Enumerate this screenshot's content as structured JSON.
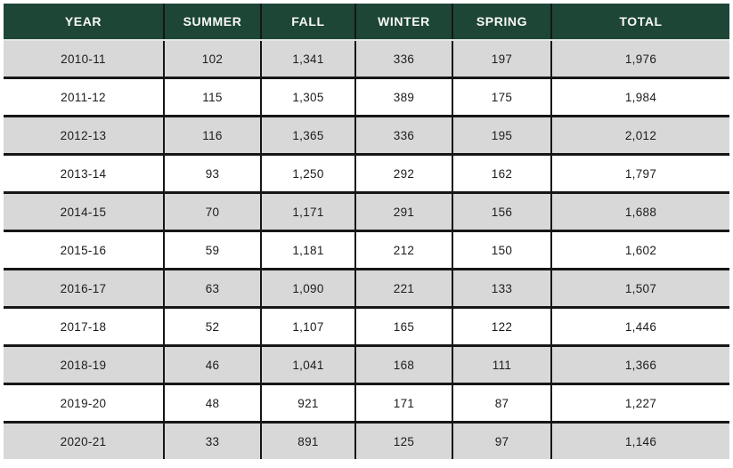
{
  "table": {
    "columns": [
      "YEAR",
      "SUMMER",
      "FALL",
      "WINTER",
      "SPRING",
      "TOTAL"
    ],
    "rows": [
      [
        "2010-11",
        "102",
        "1,341",
        "336",
        "197",
        "1,976"
      ],
      [
        "2011-12",
        "115",
        "1,305",
        "389",
        "175",
        "1,984"
      ],
      [
        "2012-13",
        "116",
        "1,365",
        "336",
        "195",
        "2,012"
      ],
      [
        "2013-14",
        "93",
        "1,250",
        "292",
        "162",
        "1,797"
      ],
      [
        "2014-15",
        "70",
        "1,171",
        "291",
        "156",
        "1,688"
      ],
      [
        "2015-16",
        "59",
        "1,181",
        "212",
        "150",
        "1,602"
      ],
      [
        "2016-17",
        "63",
        "1,090",
        "221",
        "133",
        "1,507"
      ],
      [
        "2017-18",
        "52",
        "1,107",
        "165",
        "122",
        "1,446"
      ],
      [
        "2018-19",
        "46",
        "1,041",
        "168",
        "111",
        "1,366"
      ],
      [
        "2019-20",
        "48",
        "921",
        "171",
        "87",
        "1,227"
      ],
      [
        "2020-21",
        "33",
        "891",
        "125",
        "97",
        "1,146"
      ]
    ]
  },
  "chart_data": {
    "type": "table",
    "title": "",
    "categories": [
      "2010-11",
      "2011-12",
      "2012-13",
      "2013-14",
      "2014-15",
      "2015-16",
      "2016-17",
      "2017-18",
      "2018-19",
      "2019-20",
      "2020-21"
    ],
    "series": [
      {
        "name": "SUMMER",
        "values": [
          102,
          115,
          116,
          93,
          70,
          59,
          63,
          52,
          46,
          48,
          33
        ]
      },
      {
        "name": "FALL",
        "values": [
          1341,
          1305,
          1365,
          1250,
          1171,
          1181,
          1090,
          1107,
          1041,
          921,
          891
        ]
      },
      {
        "name": "WINTER",
        "values": [
          336,
          389,
          336,
          292,
          291,
          212,
          221,
          165,
          168,
          171,
          125
        ]
      },
      {
        "name": "SPRING",
        "values": [
          197,
          175,
          195,
          162,
          156,
          150,
          133,
          122,
          111,
          87,
          97
        ]
      },
      {
        "name": "TOTAL",
        "values": [
          1976,
          1984,
          2012,
          1797,
          1688,
          1602,
          1507,
          1446,
          1366,
          1227,
          1146
        ]
      }
    ]
  },
  "colors": {
    "header_bg": "#1d4636",
    "header_text": "#fafaf5",
    "header_underline": "#e3e8e3",
    "row_bg": "#ffffff",
    "row_alt_bg": "#d8d8d8",
    "grid_line": "#161616",
    "cell_text": "#1c1c1c"
  }
}
